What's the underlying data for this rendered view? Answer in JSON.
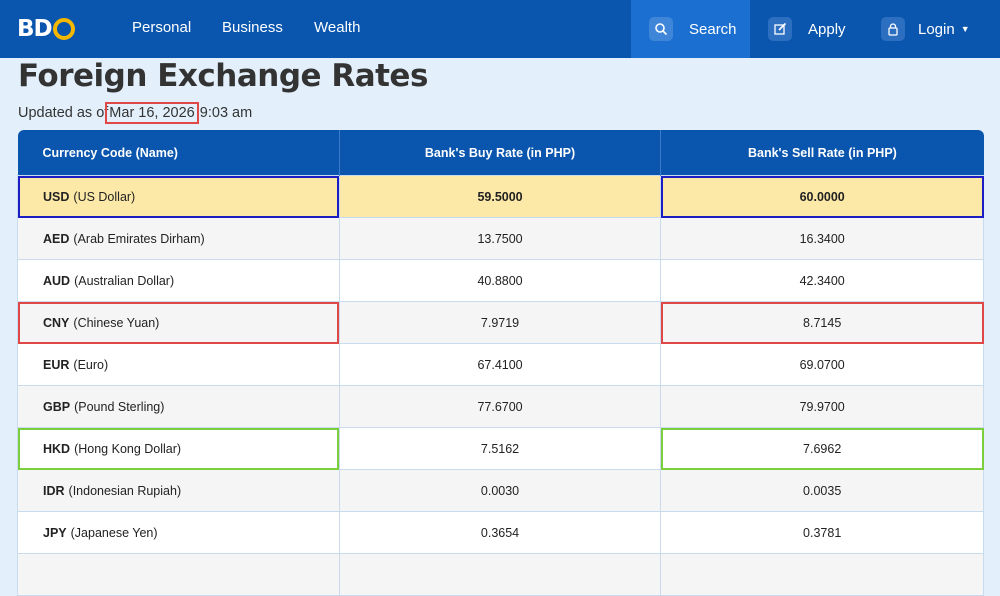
{
  "nav": {
    "logo": "BDO",
    "links": [
      "Personal",
      "Business",
      "Wealth"
    ],
    "search_label": "Search",
    "apply_label": "Apply",
    "login_label": "Login"
  },
  "page": {
    "title": "Foreign Exchange Rates",
    "updated_prefix": "Updated as of",
    "updated_date": "Mar 16, 2026",
    "updated_time": "9:03 am"
  },
  "table": {
    "headers": [
      "Currency Code (Name)",
      "Bank's Buy Rate (in PHP)",
      "Bank's Sell Rate (in PHP)"
    ],
    "rows": [
      {
        "code": "USD",
        "name": "(US Dollar)",
        "buy": "59.5000",
        "sell": "60.0000"
      },
      {
        "code": "AED",
        "name": "(Arab Emirates Dirham)",
        "buy": "13.7500",
        "sell": "16.3400"
      },
      {
        "code": "AUD",
        "name": "(Australian Dollar)",
        "buy": "40.8800",
        "sell": "42.3400"
      },
      {
        "code": "CNY",
        "name": "(Chinese Yuan)",
        "buy": "7.9719",
        "sell": "8.7145"
      },
      {
        "code": "EUR",
        "name": "(Euro)",
        "buy": "67.4100",
        "sell": "69.0700"
      },
      {
        "code": "GBP",
        "name": "(Pound Sterling)",
        "buy": "77.6700",
        "sell": "79.9700"
      },
      {
        "code": "HKD",
        "name": "(Hong Kong Dollar)",
        "buy": "7.5162",
        "sell": "7.6962"
      },
      {
        "code": "IDR",
        "name": "(Indonesian Rupiah)",
        "buy": "0.0030",
        "sell": "0.0035"
      },
      {
        "code": "JPY",
        "name": "(Japanese Yen)",
        "buy": "0.3654",
        "sell": "0.3781"
      }
    ]
  },
  "colors": {
    "nav_bg": "#0a55ad",
    "highlight_row": "#fde9a7",
    "annotation_blue": "#1d1dc4",
    "annotation_red": "#e04848",
    "annotation_green": "#7ccf3c"
  }
}
